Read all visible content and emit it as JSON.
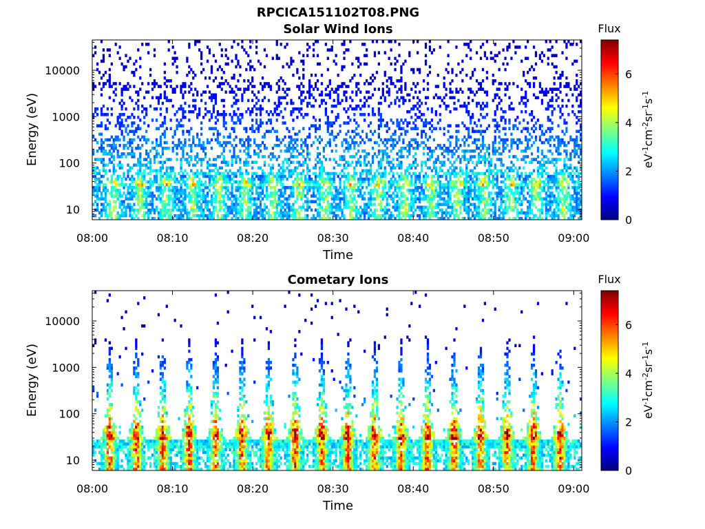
{
  "figure_title": "RPCICA151102T08.PNG",
  "chart_data": [
    {
      "type": "heatmap",
      "title": "Solar Wind Ions",
      "xlabel": "Time",
      "ylabel": "Energy (eV)",
      "y_scale": "log",
      "xlim": [
        "08:00",
        "09:01"
      ],
      "ylim": [
        6,
        45000
      ],
      "x_ticks": [
        "08:00",
        "08:10",
        "08:20",
        "08:30",
        "08:40",
        "08:50",
        "09:00"
      ],
      "y_ticks": [
        "10",
        "100",
        "1000",
        "10000"
      ],
      "colorbar": {
        "label": "Flux",
        "units": "eV-1cm-2sr-1s-1",
        "range": [
          0,
          7.4
        ],
        "ticks": [
          "0",
          "2",
          "4",
          "6"
        ],
        "colormap": "jet"
      },
      "sweep_period_minutes": 3.3,
      "sweep_starts_minutes": [
        1.2,
        4.5,
        7.8,
        11.1,
        14.4,
        17.7,
        21.0,
        24.3,
        27.6,
        30.9,
        34.2,
        37.5,
        40.8,
        44.1,
        47.4,
        50.7,
        54.0,
        57.3
      ],
      "energy_band_peaks": [
        {
          "energy_eV": 30,
          "flux": 4.5
        },
        {
          "energy_eV": 60,
          "flux": 2.4
        },
        {
          "energy_eV": 1000,
          "flux": 1.2
        },
        {
          "energy_eV": 10000,
          "flux": 0.6
        }
      ]
    },
    {
      "type": "heatmap",
      "title": "Cometary Ions",
      "xlabel": "Time",
      "ylabel": "Energy (eV)",
      "y_scale": "log",
      "xlim": [
        "08:00",
        "09:01"
      ],
      "ylim": [
        6,
        45000
      ],
      "x_ticks": [
        "08:00",
        "08:10",
        "08:20",
        "08:30",
        "08:40",
        "08:50",
        "09:00"
      ],
      "y_ticks": [
        "10",
        "100",
        "1000",
        "10000"
      ],
      "colorbar": {
        "label": "Flux",
        "units": "eV-1cm-2sr-1s-1",
        "range": [
          0,
          7.4
        ],
        "ticks": [
          "0",
          "2",
          "4",
          "6"
        ],
        "colormap": "jet"
      },
      "sweep_period_minutes": 3.3,
      "sweep_starts_minutes": [
        0.9,
        4.2,
        7.5,
        10.8,
        14.1,
        17.4,
        20.7,
        24.0,
        27.3,
        30.6,
        33.9,
        37.2,
        40.5,
        43.8,
        47.1,
        50.4,
        53.7,
        57.0
      ],
      "energy_band_peaks": [
        {
          "energy_eV": 25,
          "flux": 6.5
        },
        {
          "energy_eV": 80,
          "flux": 4.0
        },
        {
          "energy_eV": 300,
          "flux": 2.5
        },
        {
          "energy_eV": 3000,
          "flux": 0.8
        }
      ]
    }
  ]
}
